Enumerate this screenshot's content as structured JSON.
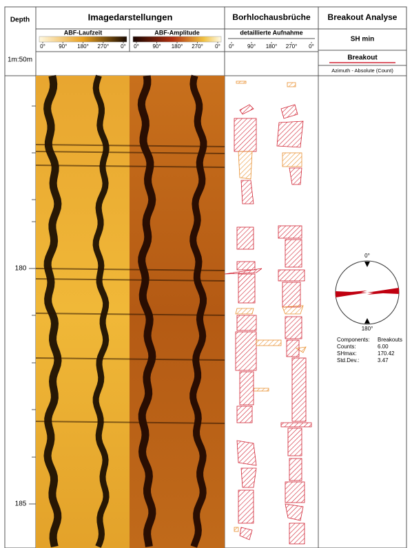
{
  "header": {
    "depth": "Depth",
    "scale": "1m:50m",
    "images": {
      "title": "Imagedarstellungen",
      "tracks": [
        {
          "name": "ABF-Laufzeit",
          "ticks": [
            "0°",
            "90°",
            "180°",
            "270°",
            "0°"
          ]
        },
        {
          "name": "ABF-Amplitude",
          "ticks": [
            "0°",
            "90°",
            "180°",
            "270°",
            "0°"
          ]
        }
      ]
    },
    "breakouts": {
      "title": "Borhlochausbrüche",
      "tracks": [
        {
          "name": "detaillierte Aufnahme",
          "ticks": [
            "0°",
            "90°",
            "180°",
            "270°",
            "0°"
          ]
        }
      ]
    },
    "analysis": {
      "title": "Breakout Analyse",
      "subtitle": "SH min",
      "legend": "Breakout",
      "axis": "Azimuth - Absolute (Count)"
    }
  },
  "depth_labels": [
    "180",
    "185"
  ],
  "rose": {
    "north": "0°",
    "south": "180°",
    "stats": [
      [
        "Components:",
        "Breakouts"
      ],
      [
        "Counts:",
        "6.00"
      ],
      [
        "SHmax:",
        "170.42"
      ],
      [
        "Std.Dev.:",
        "3.47"
      ]
    ]
  }
}
